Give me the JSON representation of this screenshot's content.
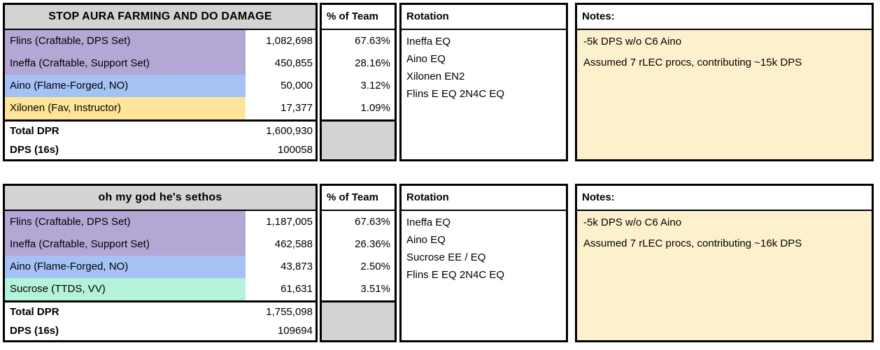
{
  "colors": {
    "header_bg": "#d3d3d3",
    "filler_bg": "#d3d3d3",
    "notes_bg": "#fdf1cd"
  },
  "tables": [
    {
      "title": "STOP AURA FARMING AND DO DAMAGE",
      "percent_header": "% of Team",
      "rotation_header": "Rotation",
      "notes_header": "Notes:",
      "rows": [
        {
          "name": "Flins (Craftable, DPS Set)",
          "value": "1,082,698",
          "percent": "67.63%",
          "color": "#b4a7d6"
        },
        {
          "name": "Ineffa (Craftable, Support Set)",
          "value": "450,855",
          "percent": "28.16%",
          "color": "#b4a7d6"
        },
        {
          "name": "Aino (Flame-Forged, NO)",
          "value": "50,000",
          "percent": "3.12%",
          "color": "#a4c2f4"
        },
        {
          "name": "Xilonen (Fav, Instructor)",
          "value": "17,377",
          "percent": "1.09%",
          "color": "#ffe599"
        }
      ],
      "totals": [
        {
          "label": "Total DPR",
          "value": "1,600,930"
        },
        {
          "label": "DPS (16s)",
          "value": "100058"
        }
      ],
      "rotation": [
        "Ineffa EQ",
        "Aino EQ",
        "Xilonen EN2",
        "Flins E EQ 2N4C EQ"
      ],
      "notes": [
        "-5k DPS w/o C6 Aino",
        "Assumed 7 rLEC procs, contributing ~15k DPS"
      ]
    },
    {
      "title": "oh my god he's sethos",
      "percent_header": "% of Team",
      "rotation_header": "Rotation",
      "notes_header": "Notes:",
      "rows": [
        {
          "name": "Flins (Craftable, DPS Set)",
          "value": "1,187,005",
          "percent": "67.63%",
          "color": "#b4a7d6"
        },
        {
          "name": "Ineffa (Craftable, Support Set)",
          "value": "462,588",
          "percent": "26.36%",
          "color": "#b4a7d6"
        },
        {
          "name": "Aino (Flame-Forged, NO)",
          "value": "43,873",
          "percent": "2.50%",
          "color": "#a4c2f4"
        },
        {
          "name": "Sucrose (TTDS, VV)",
          "value": "61,631",
          "percent": "3.51%",
          "color": "#b4f2da"
        }
      ],
      "totals": [
        {
          "label": "Total DPR",
          "value": "1,755,098"
        },
        {
          "label": "DPS (16s)",
          "value": "109694"
        }
      ],
      "rotation": [
        "Ineffa EQ",
        "Aino EQ",
        "Sucrose EE / EQ",
        "Flins E EQ 2N4C EQ"
      ],
      "notes": [
        "-5k DPS w/o C6 Aino",
        "Assumed 7 rLEC procs, contributing ~16k DPS"
      ]
    }
  ]
}
